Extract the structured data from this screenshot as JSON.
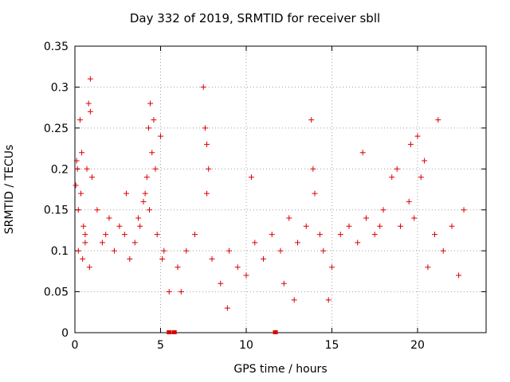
{
  "chart_data": {
    "type": "scatter",
    "title": "Day 332 of 2019, SRMTID for receiver sbll",
    "xlabel": "GPS time / hours",
    "ylabel": "SRMTID / TECUs",
    "xlim": [
      0,
      24
    ],
    "ylim": [
      0,
      0.35
    ],
    "xticks": [
      0,
      5,
      10,
      15,
      20
    ],
    "yticks": [
      0,
      0.05,
      0.1,
      0.15,
      0.2,
      0.25,
      0.3,
      0.35
    ],
    "ytick_labels": [
      "0",
      "0.05",
      "0.1",
      "0.15",
      "0.2",
      "0.25",
      "0.3",
      "0.35"
    ],
    "grid": true,
    "marker": "+",
    "color": "#dd0000",
    "zero_markers_x": [
      5.5,
      5.8,
      11.7
    ],
    "series": [
      {
        "name": "sbll",
        "x": [
          0.05,
          0.1,
          0.15,
          0.2,
          0.3,
          0.4,
          0.5,
          0.6,
          0.7,
          0.8,
          0.9,
          1.0,
          0.2,
          0.45,
          0.85,
          0.9,
          0.35,
          0.6,
          1.3,
          1.6,
          2.0,
          2.3,
          2.6,
          2.9,
          3.2,
          3.5,
          3.8,
          4.1,
          4.3,
          4.4,
          4.5,
          4.6,
          4.2,
          4.35,
          4.7,
          4.8,
          5.0,
          5.2,
          4.0,
          3.7,
          5.1,
          5.5,
          6.0,
          6.5,
          7.0,
          7.5,
          7.6,
          7.7,
          7.8,
          7.7,
          8.0,
          8.5,
          9.0,
          9.5,
          10.0,
          10.5,
          11.0,
          11.5,
          12.0,
          12.5,
          13.0,
          13.5,
          13.8,
          13.9,
          14.0,
          14.3,
          14.5,
          15.0,
          15.5,
          16.0,
          16.5,
          17.0,
          17.5,
          18.0,
          18.5,
          18.8,
          19.0,
          19.5,
          19.8,
          20.0,
          20.2,
          20.4,
          20.6,
          21.0,
          21.2,
          21.5,
          22.0,
          22.4,
          22.7,
          10.3,
          12.8,
          16.8,
          19.6,
          8.9,
          6.2,
          3.0,
          1.8,
          12.2,
          14.8,
          17.8
        ],
        "y": [
          0.18,
          0.21,
          0.2,
          0.15,
          0.26,
          0.22,
          0.13,
          0.11,
          0.2,
          0.28,
          0.31,
          0.19,
          0.1,
          0.09,
          0.08,
          0.27,
          0.17,
          0.12,
          0.15,
          0.11,
          0.14,
          0.1,
          0.13,
          0.12,
          0.09,
          0.11,
          0.13,
          0.17,
          0.25,
          0.28,
          0.22,
          0.26,
          0.19,
          0.15,
          0.2,
          0.12,
          0.24,
          0.1,
          0.16,
          0.14,
          0.09,
          0.05,
          0.08,
          0.1,
          0.12,
          0.3,
          0.25,
          0.23,
          0.2,
          0.17,
          0.09,
          0.06,
          0.1,
          0.08,
          0.07,
          0.11,
          0.09,
          0.12,
          0.1,
          0.14,
          0.11,
          0.13,
          0.26,
          0.2,
          0.17,
          0.12,
          0.1,
          0.08,
          0.12,
          0.13,
          0.11,
          0.14,
          0.12,
          0.15,
          0.19,
          0.2,
          0.13,
          0.16,
          0.14,
          0.24,
          0.19,
          0.21,
          0.08,
          0.12,
          0.26,
          0.1,
          0.13,
          0.07,
          0.15,
          0.19,
          0.04,
          0.22,
          0.23,
          0.03,
          0.05,
          0.17,
          0.12,
          0.06,
          0.04,
          0.13
        ]
      }
    ]
  }
}
